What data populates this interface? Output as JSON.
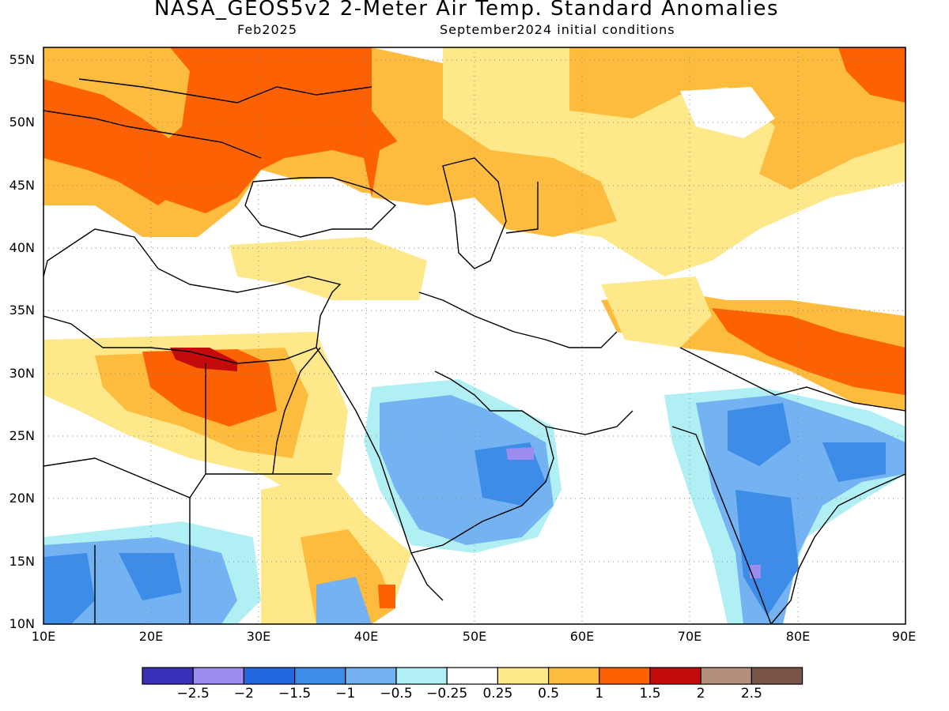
{
  "title": "NASA_GEOS5v2 2-Meter Air Temp. Standard Anomalies",
  "subtitle_left": "Feb2025",
  "subtitle_right": "September2024 initial conditions",
  "map": {
    "lon_range": [
      10,
      90
    ],
    "lat_range": [
      10,
      56
    ],
    "x_ticks": [
      "10E",
      "20E",
      "30E",
      "40E",
      "50E",
      "60E",
      "70E",
      "80E",
      "90E"
    ],
    "y_ticks": [
      "10N",
      "15N",
      "20N",
      "25N",
      "30N",
      "35N",
      "40N",
      "45N",
      "50N",
      "55N"
    ],
    "grid": "dotted"
  },
  "colorbar": {
    "colors": [
      "#3a2fb8",
      "#9c8cf0",
      "#2468e0",
      "#3c8ce8",
      "#74b2f2",
      "#b0f0f4",
      "#ffffff",
      "#fee88a",
      "#fdbc3e",
      "#fc6204",
      "#c40a0a",
      "#b4907c",
      "#7a5446"
    ],
    "labels": [
      "−2.5",
      "−2",
      "−1.5",
      "−1",
      "−0.5",
      "−0.25",
      "0.25",
      "0.5",
      "1",
      "1.5",
      "2",
      "2.5"
    ]
  },
  "regions": [
    {
      "name": "eastern-europe-warm",
      "class": "1.5"
    },
    {
      "name": "kazakhstan-warm",
      "class": "0.5"
    },
    {
      "name": "libya-egypt-warm",
      "class": "1"
    },
    {
      "name": "arabia-cool",
      "class": "-1"
    },
    {
      "name": "india-cool",
      "class": "-1"
    },
    {
      "name": "himalaya-warm",
      "class": "1"
    },
    {
      "name": "sahel-cool",
      "class": "-1"
    }
  ]
}
